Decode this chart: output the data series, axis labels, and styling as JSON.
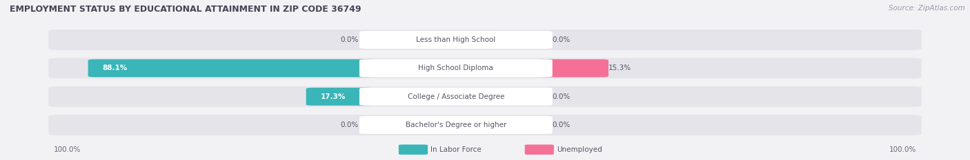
{
  "title": "EMPLOYMENT STATUS BY EDUCATIONAL ATTAINMENT IN ZIP CODE 36749",
  "source": "Source: ZipAtlas.com",
  "categories": [
    "Less than High School",
    "High School Diploma",
    "College / Associate Degree",
    "Bachelor's Degree or higher"
  ],
  "labor_force": [
    0.0,
    88.1,
    17.3,
    0.0
  ],
  "unemployed": [
    0.0,
    15.3,
    0.0,
    0.0
  ],
  "labor_force_color": "#3ab5b8",
  "unemployed_color": "#f47096",
  "bar_bg_color": "#e8e8ee",
  "label_color": "#555566",
  "title_color": "#444455",
  "source_color": "#999aaa",
  "axis_label_color": "#666677",
  "max_val": 100.0,
  "fig_bg_color": "#f2f2f5",
  "row_bg_color": "#e4e4ea",
  "row_bg_light": "#ededf2",
  "white": "#ffffff"
}
